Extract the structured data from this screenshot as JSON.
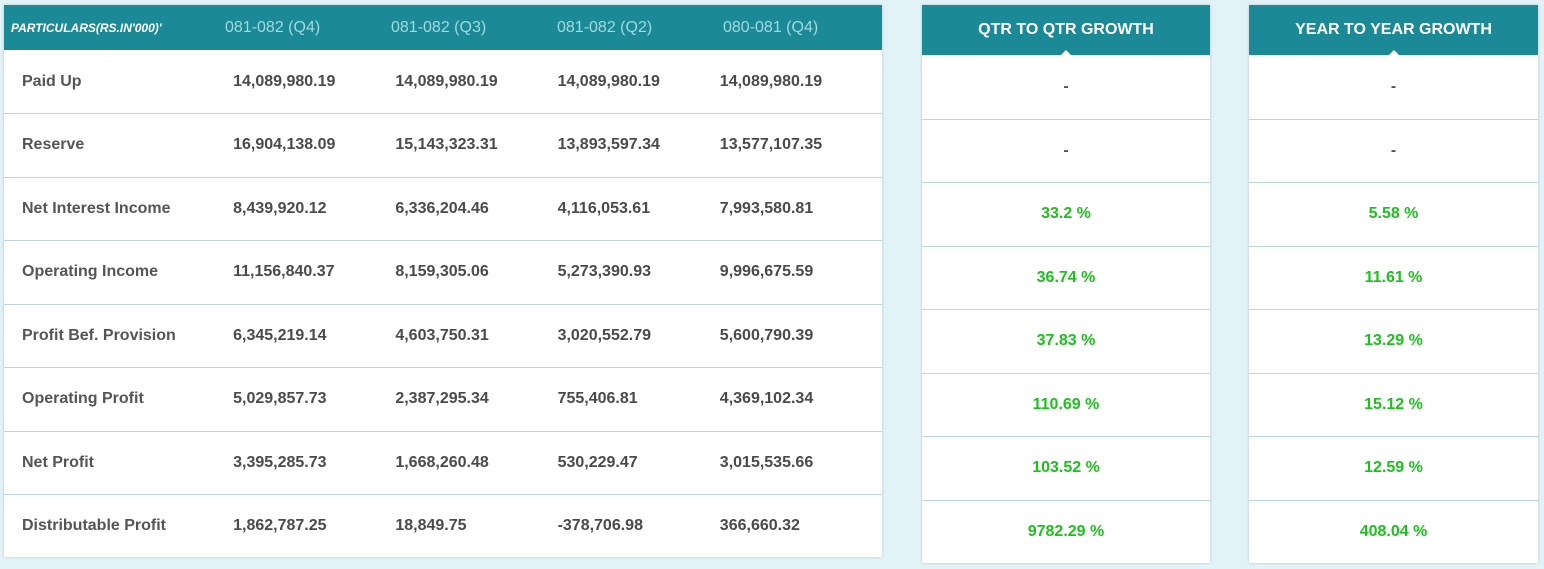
{
  "table": {
    "header_particulars": "PARTICULARS(RS.IN'000)'",
    "periods": [
      "081-082 (Q4)",
      "081-082 (Q3)",
      "081-082 (Q2)",
      "080-081 (Q4)"
    ],
    "rows": [
      {
        "label": "Paid Up",
        "values": [
          "14,089,980.19",
          "14,089,980.19",
          "14,089,980.19",
          "14,089,980.19"
        ]
      },
      {
        "label": "Reserve",
        "values": [
          "16,904,138.09",
          "15,143,323.31",
          "13,893,597.34",
          "13,577,107.35"
        ]
      },
      {
        "label": "Net Interest Income",
        "values": [
          "8,439,920.12",
          "6,336,204.46",
          "4,116,053.61",
          "7,993,580.81"
        ]
      },
      {
        "label": "Operating Income",
        "values": [
          "11,156,840.37",
          "8,159,305.06",
          "5,273,390.93",
          "9,996,675.59"
        ]
      },
      {
        "label": "Profit Bef. Provision",
        "values": [
          "6,345,219.14",
          "4,603,750.31",
          "3,020,552.79",
          "5,600,790.39"
        ]
      },
      {
        "label": "Operating Profit",
        "values": [
          "5,029,857.73",
          "2,387,295.34",
          "755,406.81",
          "4,369,102.34"
        ]
      },
      {
        "label": "Net Profit",
        "values": [
          "3,395,285.73",
          "1,668,260.48",
          "530,229.47",
          "3,015,535.66"
        ]
      },
      {
        "label": "Distributable Profit",
        "values": [
          "1,862,787.25",
          "18,849.75",
          "-378,706.98",
          "366,660.32"
        ]
      }
    ]
  },
  "qtr_growth": {
    "title": "QTR TO QTR GROWTH",
    "values": [
      "-",
      "-",
      "33.2 %",
      "36.74 %",
      "37.83 %",
      "110.69 %",
      "103.52 %",
      "9782.29 %"
    ]
  },
  "yoy_growth": {
    "title": "YEAR TO YEAR GROWTH",
    "values": [
      "-",
      "-",
      "5.58 %",
      "11.61 %",
      "13.29 %",
      "15.12 %",
      "12.59 %",
      "408.04 %"
    ]
  },
  "colors": {
    "header_bg": "#1b8a96",
    "positive": "#1fbf1f",
    "page_bg": "#e2f3f7"
  }
}
